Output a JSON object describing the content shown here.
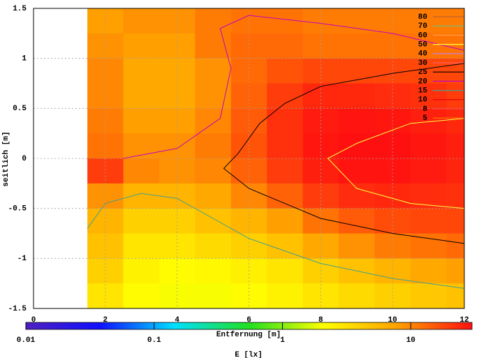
{
  "chart_data": {
    "type": "heatmap",
    "xlabel": "Entfernung [m]",
    "ylabel": "seitlich [m]",
    "colorbar_label": "E [lx]",
    "xlim": [
      0,
      12
    ],
    "xticks": [
      0,
      2,
      4,
      6,
      8,
      10,
      12
    ],
    "ylim": [
      -1.5,
      1.5
    ],
    "yticks": [
      -1.5,
      -1,
      -0.5,
      0,
      0.5,
      1,
      1.5
    ],
    "grid": true,
    "zlim": [
      0.01,
      30
    ],
    "zticks": [
      0.01,
      0.1,
      1,
      10
    ],
    "zlog": true,
    "colormap": [
      "#5020c0",
      "#1010ff",
      "#00e0ff",
      "#20e020",
      "#ffff00",
      "#ffa000",
      "#ff1010"
    ],
    "x": [
      2,
      3,
      4,
      5,
      6,
      7,
      8,
      9,
      10,
      11,
      12
    ],
    "y": [
      1.375,
      1.125,
      0.875,
      0.625,
      0.375,
      0.125,
      -0.125,
      -0.375,
      -0.625,
      -0.875,
      -1.125,
      -1.375
    ],
    "z": [
      [
        8,
        9,
        9,
        11,
        12,
        12,
        11,
        11,
        11,
        11,
        11
      ],
      [
        9,
        8,
        8,
        11,
        13,
        13,
        12,
        12,
        12,
        12,
        12
      ],
      [
        10,
        7,
        7,
        9,
        13,
        16,
        18,
        18,
        18,
        18,
        18
      ],
      [
        10,
        7,
        7,
        9,
        14,
        20,
        24,
        24,
        23,
        22,
        20
      ],
      [
        11,
        8,
        8,
        10,
        15,
        22,
        27,
        29,
        28,
        26,
        24
      ],
      [
        12,
        9,
        9,
        11,
        16,
        22,
        28,
        30,
        30,
        28,
        26
      ],
      [
        20,
        10,
        9,
        10,
        14,
        20,
        26,
        29,
        29,
        27,
        25
      ],
      [
        9,
        6,
        6,
        7,
        10,
        14,
        20,
        23,
        24,
        23,
        22
      ],
      [
        6,
        4,
        4,
        5,
        6,
        8,
        12,
        15,
        17,
        18,
        18
      ],
      [
        5,
        3,
        3,
        3.5,
        4,
        5,
        7,
        9,
        11,
        12,
        13
      ],
      [
        4,
        2.5,
        2.2,
        2.3,
        2.6,
        3,
        4,
        5,
        6,
        7,
        8
      ],
      [
        3,
        2.2,
        2,
        2,
        2.2,
        2.5,
        3,
        3.5,
        4,
        4.5,
        5
      ]
    ],
    "legend": "top right",
    "series": [
      {
        "name": "80",
        "color": "#c06030"
      },
      {
        "name": "70",
        "color": "#60c080"
      },
      {
        "name": "60",
        "color": "#ffa040"
      },
      {
        "name": "50",
        "color": "#ffff40",
        "x": [
          12,
          10.5,
          9,
          8.2,
          9,
          10.5,
          12
        ],
        "y": [
          0.4,
          0.35,
          0.15,
          0,
          -0.3,
          -0.45,
          -0.5
        ]
      },
      {
        "name": "40",
        "color": "#c080ff"
      },
      {
        "name": "30",
        "color": "#ff6060"
      },
      {
        "name": "25",
        "color": "#000000",
        "x": [
          12,
          10,
          8,
          7,
          6.3,
          5.7,
          5.3,
          6,
          8,
          10,
          12
        ],
        "y": [
          0.95,
          0.85,
          0.72,
          0.55,
          0.35,
          0.05,
          -0.1,
          -0.3,
          -0.6,
          -0.75,
          -0.85
        ]
      },
      {
        "name": "20",
        "color": "#c000c0",
        "x": [
          2.5,
          4,
          5.2,
          5.5,
          5.2,
          6,
          8,
          10,
          12
        ],
        "y": [
          0,
          0.1,
          0.4,
          0.9,
          1.3,
          1.43,
          1.35,
          1.25,
          1.08
        ]
      },
      {
        "name": "15",
        "color": "#40a090",
        "x": [
          1.5,
          2,
          3,
          4,
          5,
          6,
          8,
          10,
          12
        ],
        "y": [
          -0.7,
          -0.45,
          -0.35,
          -0.4,
          -0.6,
          -0.8,
          -1.05,
          -1.2,
          -1.3
        ]
      },
      {
        "name": "10",
        "color": "#e00000"
      },
      {
        "name": "8",
        "color": "#ff4040"
      },
      {
        "name": "5",
        "color": "#ff8000"
      }
    ]
  }
}
